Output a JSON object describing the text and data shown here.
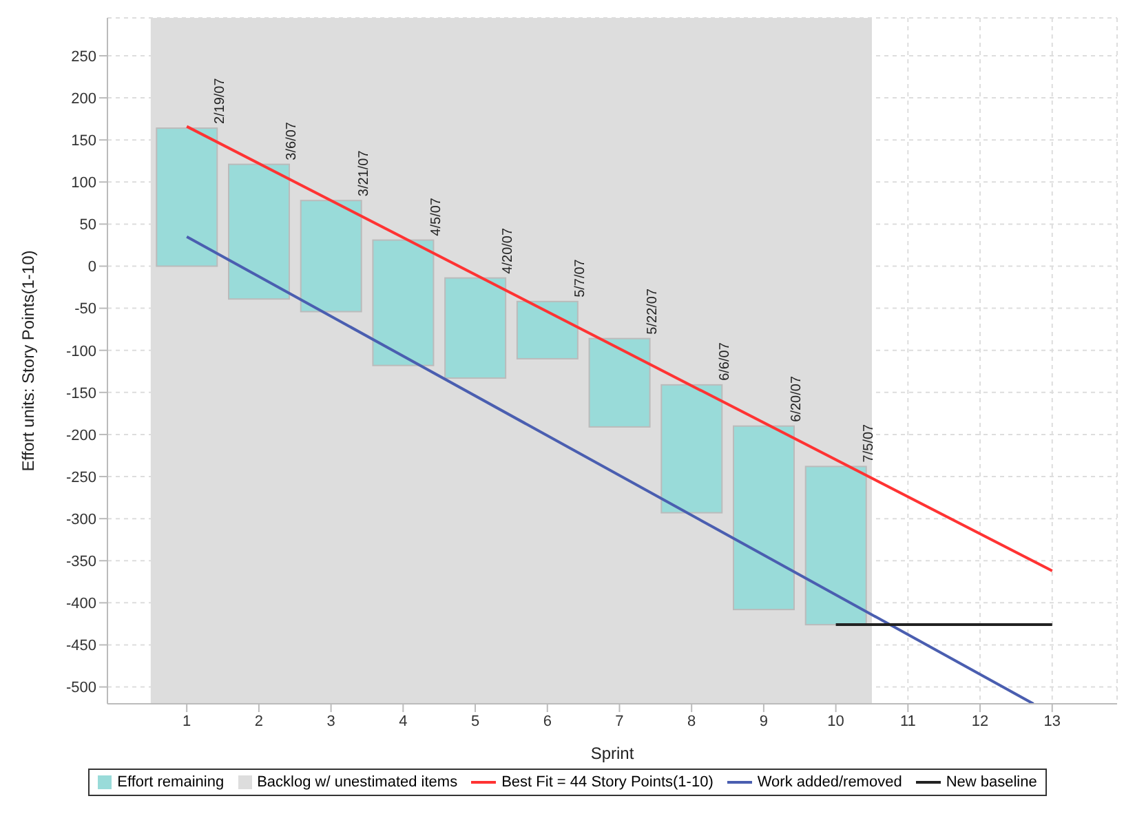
{
  "chart_data": {
    "type": "bar",
    "xlabel": "Sprint",
    "ylabel": "Effort units: Story Points(1-10)",
    "xlim": [
      -0.1,
      13.9
    ],
    "xticks": [
      1,
      2,
      3,
      4,
      5,
      6,
      7,
      8,
      9,
      10,
      11,
      12,
      13
    ],
    "ylim": [
      -520,
      295
    ],
    "yticks": [
      -500,
      -450,
      -400,
      -350,
      -300,
      -250,
      -200,
      -150,
      -100,
      -50,
      0,
      50,
      100,
      150,
      200,
      250
    ],
    "grid": true,
    "legend": "bottom",
    "bands": [
      {
        "axis": "x",
        "from": 0.5,
        "to": 10.5,
        "label": "Backlog w/ unestimated items",
        "color": "#dddddd"
      }
    ],
    "series": [
      {
        "name": "Effort remaining",
        "color": "#99dbd9",
        "x": [
          1,
          2,
          3,
          4,
          5,
          6,
          7,
          8,
          9,
          10
        ],
        "base": [
          0,
          -39,
          -54,
          -118,
          -133,
          -110,
          -191,
          -293,
          -408,
          -426
        ],
        "values": [
          164,
          160,
          132,
          149,
          119,
          68,
          105,
          152,
          218,
          188
        ],
        "value_labels": [
          "2/19/07",
          "3/6/07",
          "3/21/07",
          "4/5/07",
          "4/20/07",
          "5/7/07",
          "5/22/07",
          "6/6/07",
          "6/20/07",
          "7/5/07"
        ]
      },
      {
        "type": "line",
        "name": "Best Fit = 44 Story Points(1-10)",
        "color": "#ff3333",
        "x": [
          1,
          13
        ],
        "values": [
          166,
          -362
        ]
      },
      {
        "type": "line",
        "name": "Work added/removed",
        "color": "#4a5eb0",
        "x": [
          1,
          12.74
        ],
        "values": [
          35,
          -520
        ]
      },
      {
        "type": "line",
        "name": "New baseline",
        "color": "#222222",
        "x": [
          10,
          13
        ],
        "values": [
          -426,
          -426
        ]
      }
    ]
  }
}
